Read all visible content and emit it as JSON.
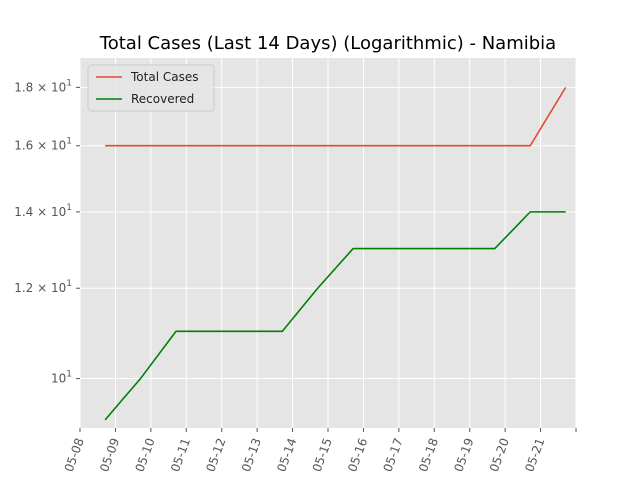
{
  "chart_data": {
    "type": "line",
    "title": "Total Cases (Last 14 Days) (Logarithmic) - Namibia",
    "xlabel": "",
    "ylabel": "",
    "yscale": "log",
    "grid": true,
    "legend_position": "top-left",
    "x_ticks": [
      "05-08",
      "05-09",
      "05-10",
      "05-11",
      "05-12",
      "05-13",
      "05-14",
      "05-15",
      "05-16",
      "05-17",
      "05-18",
      "05-19",
      "05-20",
      "05-21"
    ],
    "y_ticks": [
      {
        "value": 10,
        "base": "10",
        "exp": "1",
        "coef": ""
      },
      {
        "value": 12,
        "base": "10",
        "exp": "1",
        "coef": "1.2"
      },
      {
        "value": 14,
        "base": "10",
        "exp": "1",
        "coef": "1.4"
      },
      {
        "value": 16,
        "base": "10",
        "exp": "1",
        "coef": "1.6"
      },
      {
        "value": 18,
        "base": "10",
        "exp": "1",
        "coef": "1.8"
      }
    ],
    "ylim": [
      9.05,
      19.1
    ],
    "xlim": [
      "05-08",
      "05-22"
    ],
    "times_symbol": "×",
    "dates": [
      "05-08 17:00",
      "05-09 17:00",
      "05-10 17:00",
      "05-11 17:00",
      "05-12 17:00",
      "05-13 17:00",
      "05-14 17:00",
      "05-15 17:00",
      "05-16 17:00",
      "05-17 17:00",
      "05-18 17:00",
      "05-19 17:00",
      "05-20 17:00",
      "05-21 17:00"
    ],
    "series": [
      {
        "name": "Total Cases",
        "color": "#e24a33",
        "values": [
          16,
          16,
          16,
          16,
          16,
          16,
          16,
          16,
          16,
          16,
          16,
          16,
          16,
          18
        ]
      },
      {
        "name": "Recovered",
        "color": "#008000",
        "values": [
          9.2,
          10,
          11,
          11,
          11,
          11,
          12,
          13,
          13,
          13,
          13,
          13,
          14,
          14
        ]
      }
    ]
  }
}
